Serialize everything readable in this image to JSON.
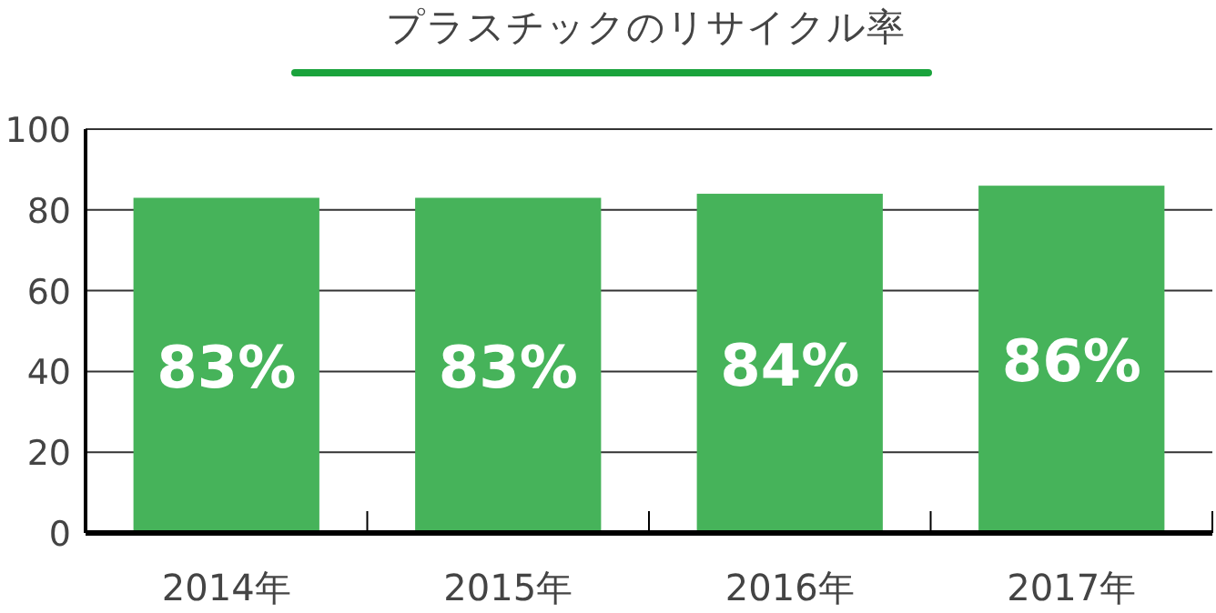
{
  "chart_data": {
    "type": "bar",
    "title": "プラスチックのリサイクル率",
    "categories": [
      "2014年",
      "2015年",
      "2016年",
      "2017年"
    ],
    "values": [
      83,
      83,
      84,
      86
    ],
    "value_labels": [
      "83%",
      "83%",
      "84%",
      "86%"
    ],
    "color": "#46b35a",
    "ylim": [
      0,
      100
    ],
    "yticks": [
      0,
      20,
      40,
      60,
      80,
      100
    ],
    "grid": "y"
  }
}
